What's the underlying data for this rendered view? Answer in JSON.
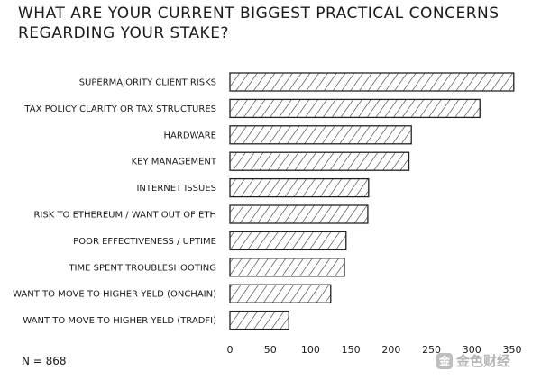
{
  "chart_data": {
    "type": "bar",
    "orientation": "horizontal",
    "title": "WHAT ARE YOUR CURRENT BIGGEST PRACTICAL CONCERNS REGARDING YOUR STAKE?",
    "categories": [
      "SUPERMAJORITY CLIENT RISKS",
      "TAX POLICY CLARITY OR TAX STRUCTURES",
      "HARDWARE",
      "KEY MANAGEMENT",
      "INTERNET ISSUES",
      "RISK TO ETHEREUM /  WANT OUT OF ETH",
      "POOR EFFECTIVENESS / UPTIME",
      "TIME SPENT TROUBLESHOOTING",
      "WANT TO MOVE TO HIGHER YELD (ONCHAIN)",
      "WANT TO MOVE TO HIGHER YELD (TRADFI)"
    ],
    "values": [
      352,
      310,
      225,
      222,
      172,
      171,
      144,
      142,
      125,
      73
    ],
    "xlim": [
      0,
      350
    ],
    "xticks": [
      0,
      50,
      100,
      150,
      200,
      250,
      300,
      350
    ],
    "grid": false,
    "bar_style": "hatched",
    "bar_color": "#222222"
  },
  "sample_size_label": "N = 868",
  "watermark": {
    "logo_icon": "jinse-logo-icon",
    "logo_letter": "金",
    "text": "金色财经"
  }
}
